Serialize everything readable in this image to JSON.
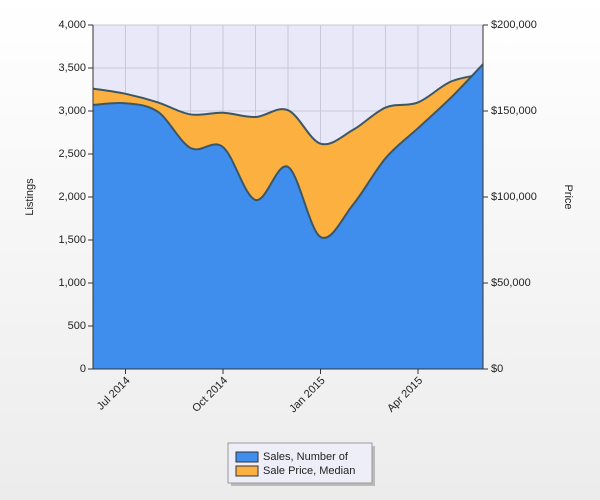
{
  "chart_data": {
    "type": "area",
    "categories": [
      null,
      "Jul 2014",
      null,
      null,
      "Oct 2014",
      null,
      null,
      "Jan 2015",
      null,
      null,
      "Apr 2015",
      null,
      null
    ],
    "y_label": "Listings",
    "y2_label": "Price",
    "ylim": [
      0,
      4000
    ],
    "yticks": [
      0,
      500,
      {
        "value": 1000,
        "label": "1,000"
      },
      {
        "value": 1500,
        "label": "1,500"
      },
      {
        "value": 2000,
        "label": "2,000"
      },
      {
        "value": 2500,
        "label": "2,500"
      },
      {
        "value": 3000,
        "label": "3,000"
      },
      {
        "value": 3500,
        "label": "3,500"
      },
      {
        "value": 4000,
        "label": "4,000"
      }
    ],
    "y2lim": [
      0,
      200000
    ],
    "y2ticks": [
      {
        "value": 0,
        "label": "$0"
      },
      {
        "value": 50000,
        "label": "$50,000"
      },
      {
        "value": 100000,
        "label": "$100,000"
      },
      {
        "value": 150000,
        "label": "$150,000"
      },
      {
        "value": 200000,
        "label": "$200,000"
      }
    ],
    "grid": true,
    "series": [
      {
        "name": "Sales, Number of",
        "color": "#3f8ded",
        "values": [
          3070,
          3090,
          2990,
          2570,
          2580,
          1965,
          2350,
          1535,
          1910,
          2450,
          2800,
          3150,
          3545
        ]
      },
      {
        "name": "Sale Price, Median",
        "color": "#fbb040",
        "axis": "y2",
        "values": [
          163000,
          160000,
          155000,
          148000,
          149000,
          146500,
          150500,
          131000,
          139000,
          152000,
          155000,
          167000,
          171500
        ]
      }
    ]
  }
}
